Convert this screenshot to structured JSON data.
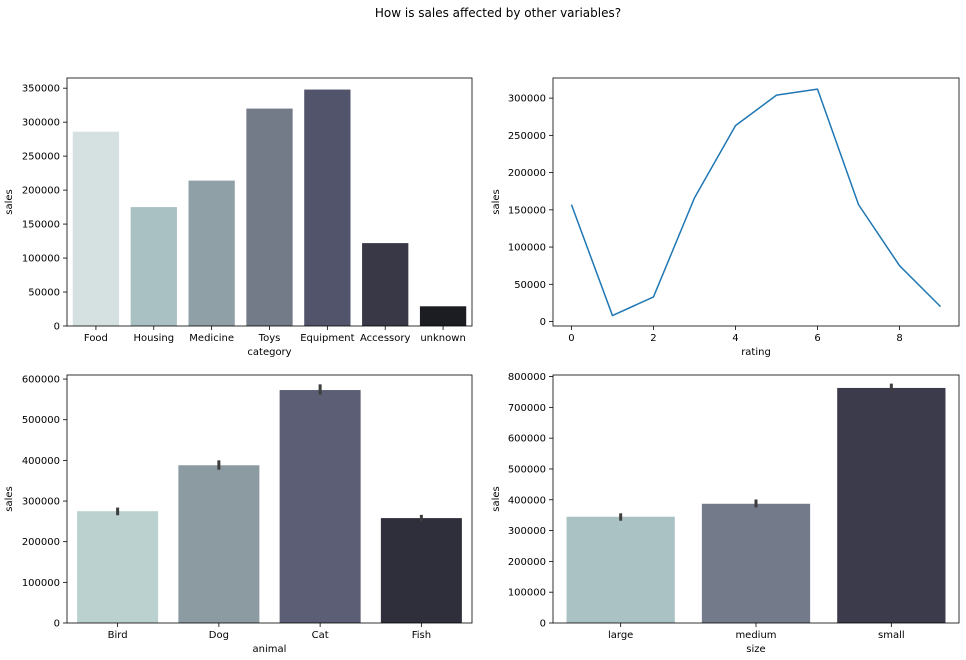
{
  "suptitle": "How is sales affected by other variables?",
  "chart_data": [
    {
      "type": "bar",
      "categories": [
        "Food",
        "Housing",
        "Medicine",
        "Toys",
        "Equipment",
        "Accessory",
        "unknown"
      ],
      "values": [
        286000,
        175000,
        214000,
        320000,
        348000,
        122000,
        29000
      ],
      "colors": [
        "#d4e1e0",
        "#a9c1c3",
        "#8fa1a7",
        "#737b89",
        "#52546b",
        "#393847",
        "#1c1c23"
      ],
      "xlabel": "category",
      "ylabel": "sales",
      "ylim": [
        0,
        365000
      ],
      "yticks": [
        0,
        50000,
        100000,
        150000,
        200000,
        250000,
        300000,
        350000
      ],
      "error_bars": false
    },
    {
      "type": "line",
      "x": [
        0,
        1,
        2,
        3,
        4,
        5,
        6,
        7,
        8,
        9
      ],
      "y": [
        157000,
        8000,
        33000,
        166000,
        263000,
        304000,
        312000,
        157000,
        75000,
        20000
      ],
      "color": "#1f77b4",
      "xlabel": "rating",
      "ylabel": "sales",
      "xlim": [
        -0.45,
        9.45
      ],
      "ylim": [
        -6000,
        327000
      ],
      "xticks": [
        0,
        2,
        4,
        6,
        8
      ],
      "yticks": [
        0,
        50000,
        100000,
        150000,
        200000,
        250000,
        300000
      ]
    },
    {
      "type": "bar",
      "categories": [
        "Bird",
        "Dog",
        "Cat",
        "Fish"
      ],
      "values": [
        275000,
        388000,
        573000,
        258000
      ],
      "errors": [
        [
          265000,
          284000
        ],
        [
          377000,
          400000
        ],
        [
          562000,
          587000
        ],
        [
          250000,
          266000
        ]
      ],
      "colors": [
        "#bad1cf",
        "#8c9aa2",
        "#5c5e76",
        "#2f2e3b"
      ],
      "xlabel": "animal",
      "ylabel": "sales",
      "ylim": [
        0,
        610000
      ],
      "yticks": [
        0,
        100000,
        200000,
        300000,
        400000,
        500000,
        600000
      ],
      "error_bars": true
    },
    {
      "type": "bar",
      "categories": [
        "large",
        "medium",
        "small"
      ],
      "values": [
        345000,
        387000,
        763000
      ],
      "errors": [
        [
          332000,
          356000
        ],
        [
          375000,
          401000
        ],
        [
          752000,
          777000
        ]
      ],
      "colors": [
        "#aac2c3",
        "#737a8a",
        "#3c3b4b"
      ],
      "xlabel": "size",
      "ylabel": "sales",
      "ylim": [
        0,
        805000
      ],
      "yticks": [
        0,
        100000,
        200000,
        300000,
        400000,
        500000,
        600000,
        700000,
        800000
      ],
      "error_bars": true
    }
  ]
}
